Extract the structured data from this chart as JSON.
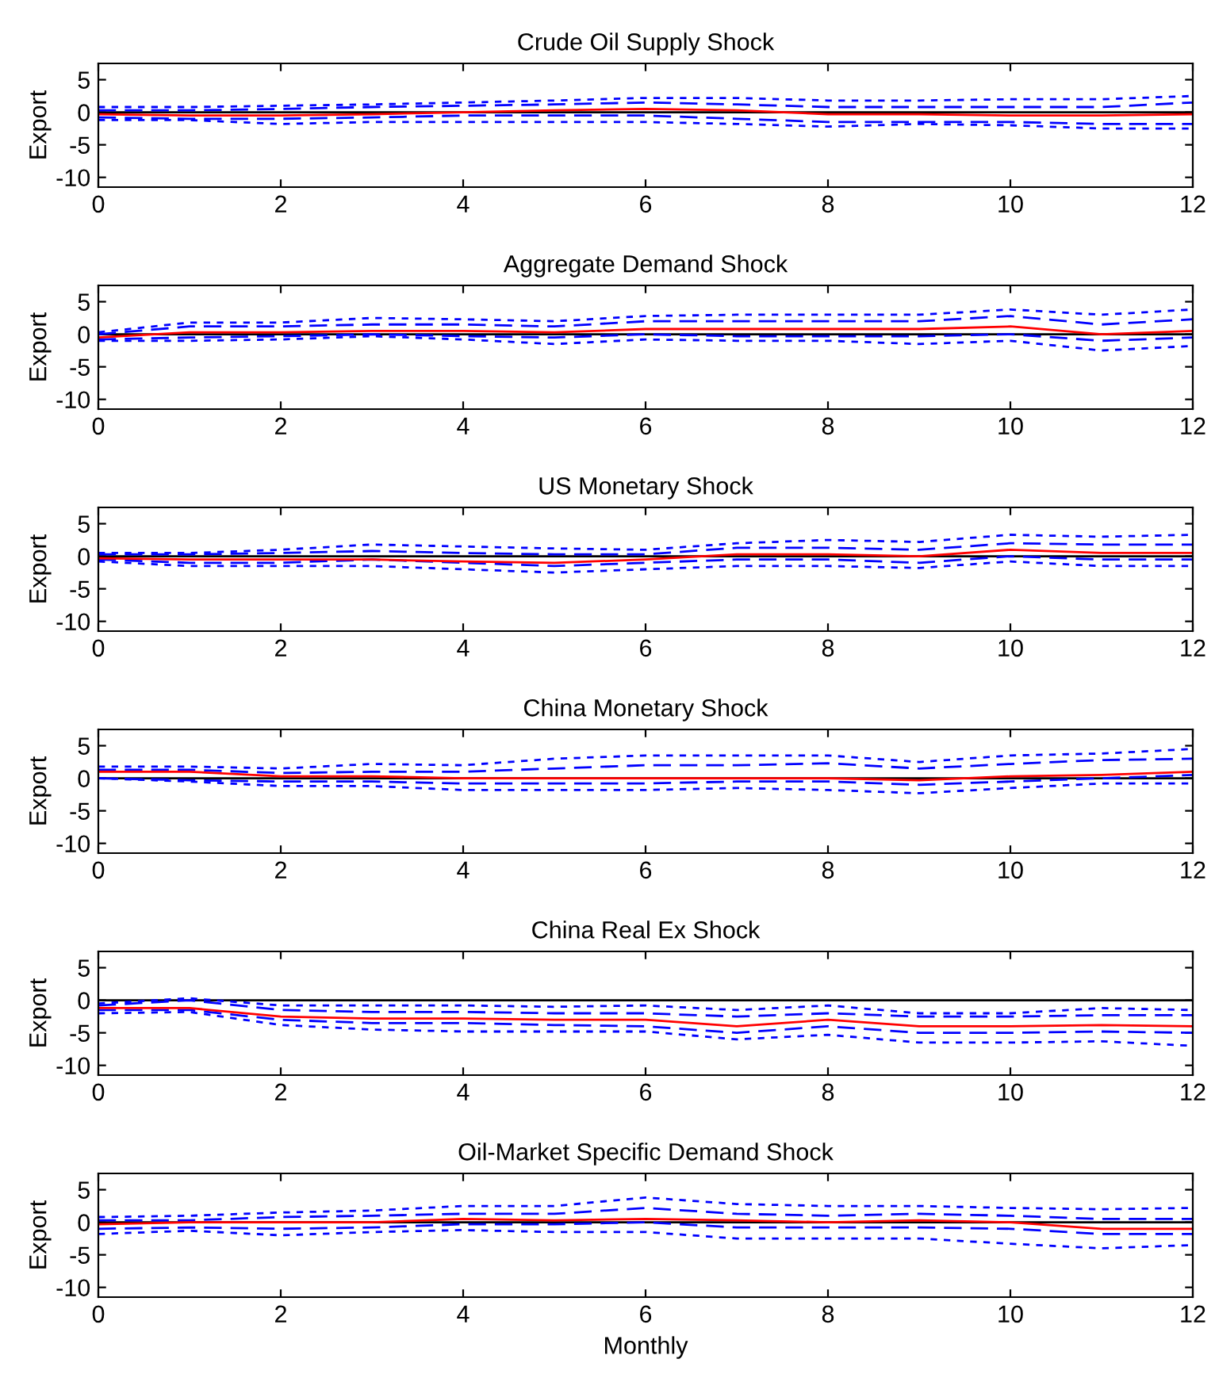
{
  "chart_data": [
    {
      "type": "line",
      "title": "Crude Oil Supply Shock",
      "ylabel": "Export",
      "x": [
        0,
        1,
        2,
        3,
        4,
        5,
        6,
        7,
        8,
        9,
        10,
        11,
        12
      ],
      "xlim": [
        0,
        12
      ],
      "xticks": [
        0,
        2,
        4,
        6,
        8,
        10,
        12
      ],
      "ylim": [
        -11.5,
        7.5
      ],
      "yticks": [
        5,
        0,
        -5,
        -10
      ],
      "grid": false,
      "ref_lines": [
        {
          "axis": "y",
          "value": 0,
          "color": "#000000"
        }
      ],
      "series": [
        {
          "color": "#0000ff",
          "line_style": "dotted",
          "values": [
            0.8,
            0.8,
            1,
            1.2,
            1.5,
            1.8,
            2.2,
            2.2,
            1.8,
            1.8,
            2,
            2,
            2.5
          ]
        },
        {
          "color": "#0000ff",
          "line_style": "dotted",
          "values": [
            -1.2,
            -1.2,
            -1.8,
            -1.5,
            -1.5,
            -1.5,
            -1.5,
            -1.8,
            -2.2,
            -1.8,
            -2,
            -2.5,
            -2.5
          ]
        },
        {
          "color": "#0000ff",
          "line_style": "dashed",
          "values": [
            0.3,
            0.3,
            0.5,
            0.8,
            1,
            1.2,
            1.5,
            1.2,
            0.8,
            0.8,
            0.8,
            0.8,
            1.5
          ]
        },
        {
          "color": "#0000ff",
          "line_style": "dashed",
          "values": [
            -0.8,
            -1,
            -1,
            -0.8,
            -0.5,
            -0.5,
            -0.5,
            -1,
            -1.5,
            -1.5,
            -1.5,
            -1.8,
            -1.8
          ]
        },
        {
          "color": "#ff0000",
          "line_style": "solid",
          "values": [
            -0.3,
            -0.5,
            -0.5,
            -0.3,
            0,
            0.3,
            0.5,
            0.3,
            -0.3,
            -0.3,
            -0.5,
            -0.5,
            -0.3
          ]
        }
      ]
    },
    {
      "type": "line",
      "title": "Aggregate Demand Shock",
      "ylabel": "Export",
      "x": [
        0,
        1,
        2,
        3,
        4,
        5,
        6,
        7,
        8,
        9,
        10,
        11,
        12
      ],
      "xlim": [
        0,
        12
      ],
      "xticks": [
        0,
        2,
        4,
        6,
        8,
        10,
        12
      ],
      "ylim": [
        -11.5,
        7.5
      ],
      "yticks": [
        5,
        0,
        -5,
        -10
      ],
      "grid": false,
      "ref_lines": [
        {
          "axis": "y",
          "value": 0,
          "color": "#000000"
        }
      ],
      "series": [
        {
          "color": "#0000ff",
          "line_style": "dotted",
          "values": [
            0.3,
            1.8,
            1.8,
            2.5,
            2.3,
            2,
            2.8,
            3,
            3,
            3,
            3.8,
            3,
            3.8
          ]
        },
        {
          "color": "#0000ff",
          "line_style": "dotted",
          "values": [
            -1,
            -1,
            -0.8,
            -0.3,
            -0.8,
            -1.5,
            -0.8,
            -1,
            -1,
            -1.5,
            -1,
            -2.5,
            -1.8
          ]
        },
        {
          "color": "#0000ff",
          "line_style": "dashed",
          "values": [
            0,
            1.2,
            1.2,
            1.5,
            1.5,
            1.2,
            2,
            2,
            2,
            2,
            2.8,
            1.5,
            2.3
          ]
        },
        {
          "color": "#0000ff",
          "line_style": "dashed",
          "values": [
            -0.8,
            -0.5,
            -0.3,
            0,
            -0.3,
            -0.5,
            0,
            -0.3,
            -0.3,
            -0.3,
            0,
            -1,
            -0.5
          ]
        },
        {
          "color": "#ff0000",
          "line_style": "solid",
          "values": [
            -0.5,
            0.3,
            0.3,
            0.5,
            0.5,
            0.3,
            0.8,
            0.8,
            0.8,
            0.8,
            1.2,
            0,
            0.5
          ]
        }
      ]
    },
    {
      "type": "line",
      "title": "US Monetary Shock",
      "ylabel": "Export",
      "x": [
        0,
        1,
        2,
        3,
        4,
        5,
        6,
        7,
        8,
        9,
        10,
        11,
        12
      ],
      "xlim": [
        0,
        12
      ],
      "xticks": [
        0,
        2,
        4,
        6,
        8,
        10,
        12
      ],
      "ylim": [
        -11.5,
        7.5
      ],
      "yticks": [
        5,
        0,
        -5,
        -10
      ],
      "grid": false,
      "ref_lines": [
        {
          "axis": "y",
          "value": 0,
          "color": "#000000"
        }
      ],
      "series": [
        {
          "color": "#0000ff",
          "line_style": "dotted",
          "values": [
            0.5,
            0.5,
            1,
            1.8,
            1.5,
            1.2,
            1,
            2,
            2.5,
            2.2,
            3.3,
            3,
            3.3
          ]
        },
        {
          "color": "#0000ff",
          "line_style": "dotted",
          "values": [
            -0.8,
            -1.5,
            -1.5,
            -1.5,
            -2,
            -2.5,
            -2,
            -1.5,
            -1.5,
            -1.8,
            -0.8,
            -1.5,
            -1.5
          ]
        },
        {
          "color": "#0000ff",
          "line_style": "dashed",
          "values": [
            0.3,
            0.3,
            0.5,
            0.8,
            0.5,
            0.3,
            0.3,
            1.3,
            1.3,
            1,
            2,
            1.8,
            1.8
          ]
        },
        {
          "color": "#0000ff",
          "line_style": "dashed",
          "values": [
            -0.5,
            -1,
            -1,
            -0.5,
            -1,
            -1.5,
            -1,
            -0.5,
            -0.5,
            -1,
            0,
            -0.5,
            -0.5
          ]
        },
        {
          "color": "#ff0000",
          "line_style": "solid",
          "values": [
            -0.3,
            -0.5,
            -0.5,
            -0.5,
            -0.8,
            -1,
            -0.5,
            0.3,
            0.3,
            0,
            1,
            0.5,
            0.5
          ]
        }
      ]
    },
    {
      "type": "line",
      "title": "China Monetary Shock",
      "ylabel": "Export",
      "x": [
        0,
        1,
        2,
        3,
        4,
        5,
        6,
        7,
        8,
        9,
        10,
        11,
        12
      ],
      "xlim": [
        0,
        12
      ],
      "xticks": [
        0,
        2,
        4,
        6,
        8,
        10,
        12
      ],
      "ylim": [
        -11.5,
        7.5
      ],
      "yticks": [
        5,
        0,
        -5,
        -10
      ],
      "grid": false,
      "ref_lines": [
        {
          "axis": "y",
          "value": 0,
          "color": "#000000"
        }
      ],
      "series": [
        {
          "color": "#0000ff",
          "line_style": "dotted",
          "values": [
            1.8,
            1.8,
            1.5,
            2.2,
            2,
            3,
            3.5,
            3.5,
            3.5,
            2.5,
            3.5,
            3.8,
            4.5
          ]
        },
        {
          "color": "#0000ff",
          "line_style": "dotted",
          "values": [
            0,
            -0.5,
            -1.2,
            -1.2,
            -1.8,
            -1.8,
            -1.8,
            -1.5,
            -1.8,
            -2.3,
            -1.5,
            -0.8,
            -0.8
          ]
        },
        {
          "color": "#0000ff",
          "line_style": "dashed",
          "values": [
            1.3,
            1.3,
            0.8,
            1,
            1,
            1.5,
            2,
            2,
            2.3,
            1.5,
            2.2,
            2.8,
            3
          ]
        },
        {
          "color": "#0000ff",
          "line_style": "dashed",
          "values": [
            0,
            -0.3,
            -0.5,
            -0.5,
            -0.8,
            -0.8,
            -0.8,
            -0.5,
            -0.5,
            -1,
            -0.5,
            0,
            0.5
          ]
        },
        {
          "color": "#ff0000",
          "line_style": "solid",
          "values": [
            1,
            1,
            0.3,
            0.3,
            0,
            0,
            0,
            0,
            0,
            -0.3,
            0.3,
            0.5,
            1
          ]
        }
      ]
    },
    {
      "type": "line",
      "title": "China Real Ex Shock",
      "ylabel": "Export",
      "x": [
        0,
        1,
        2,
        3,
        4,
        5,
        6,
        7,
        8,
        9,
        10,
        11,
        12
      ],
      "xlim": [
        0,
        12
      ],
      "xticks": [
        0,
        2,
        4,
        6,
        8,
        10,
        12
      ],
      "ylim": [
        -11.5,
        7.5
      ],
      "yticks": [
        5,
        0,
        -5,
        -10
      ],
      "grid": false,
      "ref_lines": [
        {
          "axis": "y",
          "value": 0,
          "color": "#000000"
        }
      ],
      "series": [
        {
          "color": "#0000ff",
          "line_style": "dotted",
          "values": [
            -0.5,
            0.3,
            -0.8,
            -0.8,
            -0.8,
            -1,
            -0.8,
            -1.5,
            -0.8,
            -2,
            -2,
            -1.2,
            -1.5
          ]
        },
        {
          "color": "#0000ff",
          "line_style": "dotted",
          "values": [
            -2,
            -1.8,
            -3.8,
            -4.5,
            -4.8,
            -4.8,
            -4.8,
            -6,
            -5.3,
            -6.5,
            -6.5,
            -6.3,
            -7
          ]
        },
        {
          "color": "#0000ff",
          "line_style": "dashed",
          "values": [
            -0.8,
            0,
            -1.5,
            -1.8,
            -1.8,
            -2,
            -2,
            -2.5,
            -2,
            -2.5,
            -2.5,
            -2.3,
            -2.3
          ]
        },
        {
          "color": "#0000ff",
          "line_style": "dashed",
          "values": [
            -1.5,
            -1.5,
            -3,
            -3.5,
            -3.5,
            -3.8,
            -4,
            -5,
            -4,
            -5,
            -5,
            -4.8,
            -5
          ]
        },
        {
          "color": "#ff0000",
          "line_style": "solid",
          "values": [
            -1.2,
            -1.2,
            -2.5,
            -2.8,
            -2.8,
            -3,
            -3,
            -4,
            -3,
            -4,
            -4,
            -3.8,
            -4
          ]
        }
      ]
    },
    {
      "type": "line",
      "title": "Oil-Market Specific Demand Shock",
      "ylabel": "Export",
      "xlabel": "Monthly",
      "x": [
        0,
        1,
        2,
        3,
        4,
        5,
        6,
        7,
        8,
        9,
        10,
        11,
        12
      ],
      "xlim": [
        0,
        12
      ],
      "xticks": [
        0,
        2,
        4,
        6,
        8,
        10,
        12
      ],
      "ylim": [
        -11.5,
        7.5
      ],
      "yticks": [
        5,
        0,
        -5,
        -10
      ],
      "grid": false,
      "ref_lines": [
        {
          "axis": "y",
          "value": 0,
          "color": "#000000"
        }
      ],
      "series": [
        {
          "color": "#0000ff",
          "line_style": "dotted",
          "values": [
            0.8,
            1,
            1.5,
            1.8,
            2.5,
            2.5,
            3.8,
            2.8,
            2.5,
            2.5,
            2.2,
            2,
            2.2
          ]
        },
        {
          "color": "#0000ff",
          "line_style": "dotted",
          "values": [
            -1.8,
            -1.3,
            -2,
            -1.5,
            -1.2,
            -1.5,
            -1.5,
            -2.5,
            -2.5,
            -2.5,
            -3.3,
            -4,
            -3.5
          ]
        },
        {
          "color": "#0000ff",
          "line_style": "dashed",
          "values": [
            0.3,
            0.3,
            0.8,
            1,
            1.3,
            1.3,
            2.2,
            1.3,
            1,
            1.3,
            1,
            0.5,
            0.5
          ]
        },
        {
          "color": "#0000ff",
          "line_style": "dashed",
          "values": [
            -1,
            -0.8,
            -1,
            -0.8,
            -0.3,
            -0.3,
            0,
            -0.8,
            -0.8,
            -0.8,
            -1,
            -1.8,
            -1.8
          ]
        },
        {
          "color": "#ff0000",
          "line_style": "solid",
          "values": [
            -0.3,
            0,
            0,
            0,
            0.5,
            0.3,
            0.5,
            0.3,
            0,
            0.3,
            0,
            -1,
            -1
          ]
        }
      ]
    }
  ]
}
